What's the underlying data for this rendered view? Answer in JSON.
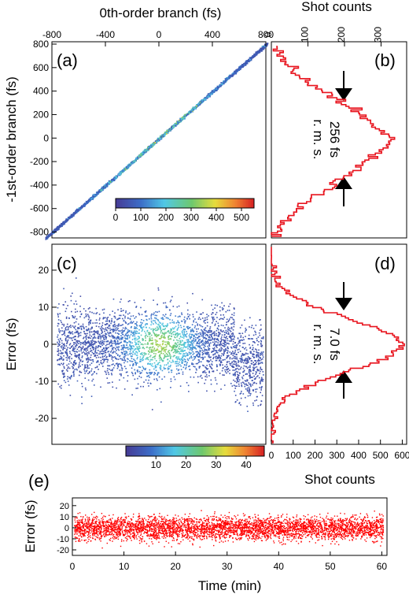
{
  "chart_data": [
    {
      "panel_label": "(a)",
      "type": "heatmap",
      "xlabel": "0th-order branch (fs)",
      "ylabel": "-1st-order branch (fs)",
      "xlim": [
        -800,
        800
      ],
      "ylim": [
        -850,
        820
      ],
      "x_ticks": [
        "-800",
        "-400",
        "0",
        "400",
        "800"
      ],
      "y_ticks": [
        "800",
        "600",
        "400",
        "200",
        "0",
        "-200",
        "-400",
        "-600",
        "-800"
      ],
      "colorbar": {
        "ticks": [
          "0",
          "100",
          "200",
          "300",
          "400",
          "500"
        ],
        "range": [
          0,
          550
        ],
        "position": "inside-bottom-right"
      }
    },
    {
      "panel_label": "(b)",
      "type": "line",
      "xlabel": "Shot counts",
      "x_ticks": [
        "0",
        "100",
        "200",
        "300"
      ],
      "xlim": [
        0,
        370
      ],
      "series_color": "#e8141e",
      "annotation": [
        "256 fs",
        "r. m. s."
      ],
      "profile": [
        [
          -850,
          5
        ],
        [
          -800,
          12
        ],
        [
          -700,
          40
        ],
        [
          -600,
          70
        ],
        [
          -500,
          110
        ],
        [
          -400,
          170
        ],
        [
          -300,
          220
        ],
        [
          -200,
          255
        ],
        [
          -100,
          300
        ],
        [
          0,
          330
        ],
        [
          100,
          290
        ],
        [
          200,
          250
        ],
        [
          300,
          200
        ],
        [
          400,
          140
        ],
        [
          500,
          95
        ],
        [
          600,
          60
        ],
        [
          700,
          30
        ],
        [
          800,
          8
        ]
      ]
    },
    {
      "panel_label": "(c)",
      "type": "scatter",
      "ylabel": "Error (fs)",
      "ylim": [
        -27,
        27
      ],
      "y_ticks": [
        "20",
        "10",
        "0",
        "-10",
        "-20"
      ],
      "colorbar": {
        "ticks": [
          "10",
          "20",
          "30",
          "40"
        ],
        "range": [
          0,
          46
        ],
        "position": "bottom"
      }
    },
    {
      "panel_label": "(d)",
      "type": "line",
      "xlabel": "Shot counts",
      "x_ticks": [
        "0",
        "100",
        "200",
        "300",
        "400",
        "500",
        "600"
      ],
      "xlim": [
        0,
        620
      ],
      "series_color": "#e8141e",
      "annotation": [
        "7.0 fs",
        "r. m. s."
      ],
      "sigma_fs": 7.0,
      "peak_counts": 590
    },
    {
      "panel_label": "(e)",
      "type": "scatter",
      "xlabel": "Time (min)",
      "ylabel": "Error (fs)",
      "xlim": [
        0,
        61
      ],
      "ylim": [
        -25,
        27
      ],
      "x_ticks": [
        "0",
        "10",
        "20",
        "30",
        "40",
        "50",
        "60"
      ],
      "y_ticks": [
        "20",
        "10",
        "0",
        "-10",
        "-20"
      ],
      "series_color": "#ff0000"
    }
  ]
}
